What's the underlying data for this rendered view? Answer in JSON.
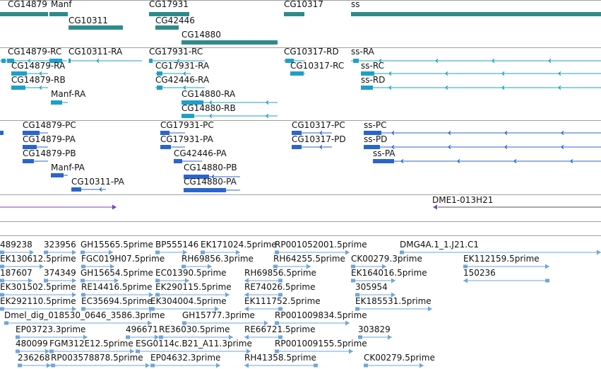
{
  "colors": {
    "gene": "#2e8b8b",
    "transcript_track": "#1ea0c8",
    "protein": "#2b65cc",
    "clone": "#7744bb",
    "est": "#6ea6dc",
    "separator": "#a0a0a0"
  },
  "tracks": {
    "genes": {
      "labels": [
        "CG14879",
        "Manf",
        "CG10311",
        "CG17931",
        "CG42446",
        "CG14880",
        "CG10317",
        "ss"
      ]
    },
    "transcripts": {
      "labels": [
        "CG14879-RC",
        "CG10311-RA",
        "CG17931-RC",
        "CG10317-RD",
        "ss-RA",
        "CG14879-RA",
        "CG17931-RA",
        "CG10317-RC",
        "ss-RC",
        "CG14879-RB",
        "CG42446-RA",
        "ss-RD",
        "Manf-RA",
        "CG14880-RA",
        "CG14880-RB"
      ]
    },
    "proteins": {
      "labels": [
        "CG14879-PC",
        "CG17931-PC",
        "CG10317-PC",
        "ss-PC",
        "CG14879-PA",
        "CG17931-PA",
        "CG10317-PD",
        "ss-PD",
        "CG14879-PB",
        "CG42446-PA",
        "ss-PA",
        "Manf-PA",
        "CG14880-PB",
        "CG10311-PA",
        "CG14880-PA"
      ]
    },
    "clones": {
      "labels": [
        "DME1-013H21"
      ]
    },
    "ests": {
      "labels": [
        "489238",
        "323956",
        "GH15565.5prime",
        "BP555146",
        "EK171024.5prime",
        "RP001052001.5prime",
        "DMG4A.1_1.J21.C1",
        "EK130612.5prime",
        "FGC019H07.5prime",
        "RH69856.3prime",
        "RH64255.5prime",
        "CK00279.3prime",
        "EK112159.5prime",
        "187607",
        "374349",
        "GH15654.5prime",
        "EC01390.5prime",
        "RH69856.5prime",
        "EK164016.5prime",
        "150236",
        "EK301502.5prime",
        "RE14416.5prime",
        "EK290115.5prime",
        "RE74026.5prime",
        "305954",
        "EK292110.5prime",
        "EC35694.5prime",
        "EK304004.5prime",
        "EK111752.5prime",
        "EK185531.5prime",
        "Dmel_dig_018530_0646_3586.3prime",
        "GH15777.3prime",
        "RP001009834.5prime",
        "EP03723.3prime",
        "496671",
        "RE36030.5prime",
        "RE66721.5prime",
        "303829",
        "480099",
        "FGM312E12.5prime",
        "ESG0114c.B21_A11.3prime",
        "RP001009155.5prime",
        "236268",
        "RP003578878.5prime",
        "EP04632.3prime",
        "RH41358.5prime",
        "CK00279.5prime"
      ]
    }
  }
}
